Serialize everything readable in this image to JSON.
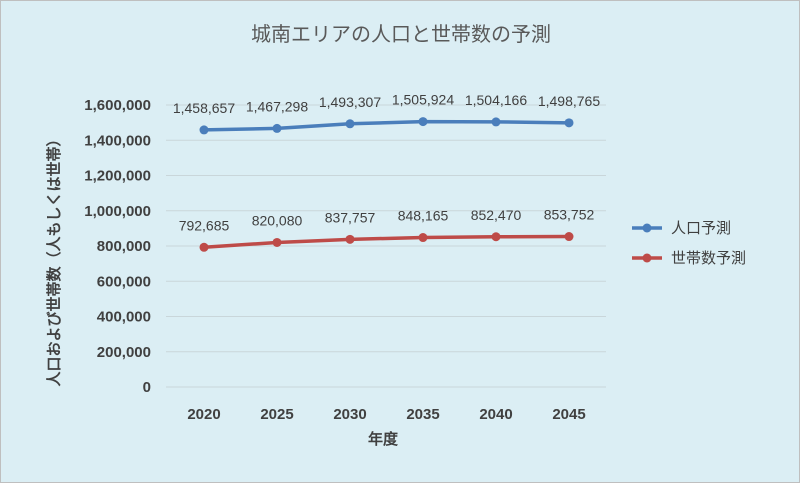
{
  "chart_data": {
    "type": "line",
    "title": "城南エリアの人口と世帯数の予測",
    "xlabel": "年度",
    "ylabel": "人口および世帯数（人もしくは世帯）",
    "categories": [
      "2020",
      "2025",
      "2030",
      "2035",
      "2040",
      "2045"
    ],
    "ylim": [
      0,
      1600000
    ],
    "yticks": [
      0,
      200000,
      400000,
      600000,
      800000,
      1000000,
      1200000,
      1400000,
      1600000
    ],
    "ytick_labels": [
      "0",
      "200,000",
      "400,000",
      "600,000",
      "800,000",
      "1,000,000",
      "1,200,000",
      "1,400,000",
      "1,600,000"
    ],
    "grid": true,
    "legend_position": "right",
    "series": [
      {
        "name": "人口予測",
        "color": "#4a7ebb",
        "values": [
          1458657,
          1467298,
          1493307,
          1505924,
          1504166,
          1498765
        ],
        "labels": [
          "1,458,657",
          "1,467,298",
          "1,493,307",
          "1,505,924",
          "1,504,166",
          "1,498,765"
        ]
      },
      {
        "name": "世帯数予測",
        "color": "#be4b48",
        "values": [
          792685,
          820080,
          837757,
          848165,
          852470,
          853752
        ],
        "labels": [
          "792,685",
          "820,080",
          "837,757",
          "848,165",
          "852,470",
          "853,752"
        ]
      }
    ]
  }
}
